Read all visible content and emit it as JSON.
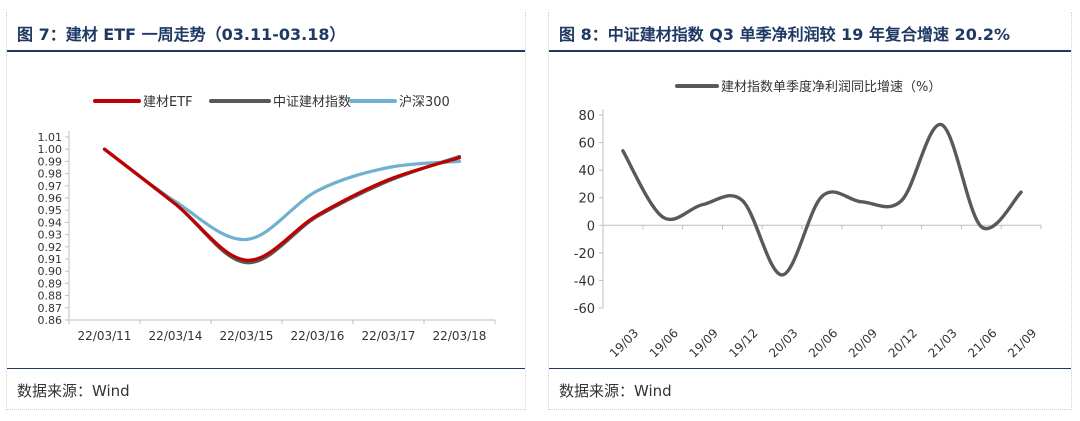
{
  "left_panel": {
    "title": "图 7：建材 ETF 一周走势（03.11-03.18）",
    "source": "数据来源：Wind"
  },
  "right_panel": {
    "title": "图 8：中证建材指数 Q3 单季净利润较 19 年复合增速 20.2%",
    "source": "数据来源：Wind"
  },
  "chart_data": [
    {
      "type": "line",
      "title": "",
      "categories": [
        "22/03/11",
        "22/03/14",
        "22/03/15",
        "22/03/16",
        "22/03/17",
        "22/03/18"
      ],
      "yticks": [
        "0.86",
        "0.87",
        "0.88",
        "0.89",
        "0.90",
        "0.91",
        "0.92",
        "0.93",
        "0.94",
        "0.95",
        "0.96",
        "0.97",
        "0.98",
        "0.99",
        "1.00",
        "1.01"
      ],
      "ylim": [
        0.86,
        1.01
      ],
      "legend_position": "top",
      "series": [
        {
          "name": "建材ETF",
          "color": "#c00000",
          "values": [
            1.0,
            0.955,
            0.909,
            0.946,
            0.975,
            0.993
          ]
        },
        {
          "name": "中证建材指数",
          "color": "#595959",
          "values": [
            1.0,
            0.955,
            0.907,
            0.945,
            0.974,
            0.994
          ]
        },
        {
          "name": "沪深300",
          "color": "#70b0d0",
          "values": [
            1.0,
            0.957,
            0.926,
            0.966,
            0.985,
            0.99
          ]
        }
      ]
    },
    {
      "type": "line",
      "title": "",
      "categories": [
        "19/03",
        "19/06",
        "19/09",
        "19/12",
        "20/03",
        "20/06",
        "20/09",
        "20/12",
        "21/03",
        "21/06",
        "21/09"
      ],
      "yticks": [
        "-60",
        "-40",
        "-20",
        "0",
        "20",
        "40",
        "60",
        "80"
      ],
      "ylim": [
        -60,
        80
      ],
      "legend_position": "top",
      "series": [
        {
          "name": "建材指数单季度净利润同比增速（%）",
          "color": "#595959",
          "values": [
            54,
            6,
            15,
            18,
            -36,
            21,
            17,
            18,
            73,
            -1,
            24
          ]
        }
      ]
    }
  ]
}
